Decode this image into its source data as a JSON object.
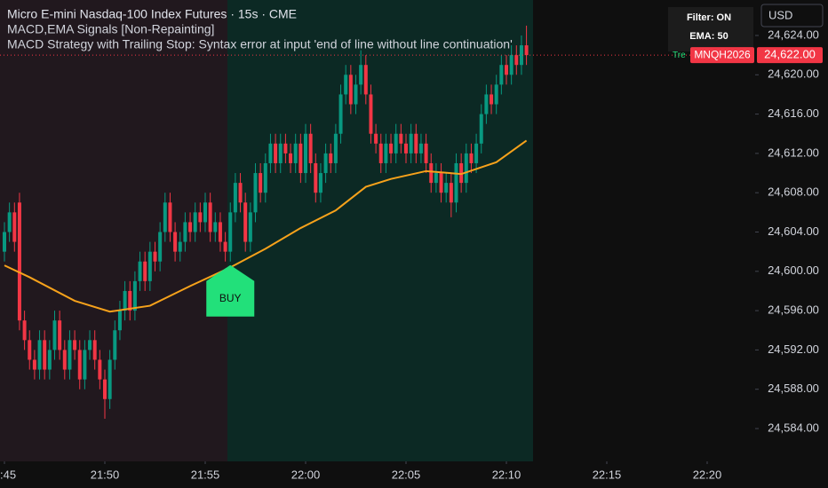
{
  "chart_data": {
    "type": "candlestick",
    "title": "Micro E-mini Nasdaq-100 Index Futures · 15s · CME",
    "indicator_1": "MACD,EMA Signals [Non-Repainting]",
    "indicator_2": "MACD Strategy with Trailing Stop: Syntax error at input 'end of line without line continuation'",
    "status_filter": "Filter: ON",
    "status_ema": "EMA: 50",
    "currency": "USD",
    "symbol": "MNQH2026",
    "partial_label": "Tre",
    "up_color": "#089981",
    "down_color": "#f23645",
    "ylim": [
      24580.66,
      24627.61
    ],
    "xlim": [
      -0.885,
      149.56
    ],
    "yticks": [
      {
        "value": 24584,
        "label": "24,584.00"
      },
      {
        "value": 24588,
        "label": "24,588.00"
      },
      {
        "value": 24592,
        "label": "24,592.00"
      },
      {
        "value": 24596,
        "label": "24,596.00"
      },
      {
        "value": 24600,
        "label": "24,600.00"
      },
      {
        "value": 24604,
        "label": "24,604.00"
      },
      {
        "value": 24608,
        "label": "24,608.00"
      },
      {
        "value": 24612,
        "label": "24,612.00"
      },
      {
        "value": 24616,
        "label": "24,616.00"
      },
      {
        "value": 24620,
        "label": "24,620.00"
      },
      {
        "value": 24624,
        "label": "24,624.00"
      }
    ],
    "xticks": [
      {
        "value": 0,
        "label": ":45"
      },
      {
        "value": 20,
        "label": "21:50"
      },
      {
        "value": 40,
        "label": "21:55"
      },
      {
        "value": 60,
        "label": "22:00"
      },
      {
        "value": 80,
        "label": "22:05"
      },
      {
        "value": 100,
        "label": "22:10"
      },
      {
        "value": 120,
        "label": "22:15"
      },
      {
        "value": 140,
        "label": "22:20"
      }
    ],
    "last_price": {
      "value": 24622,
      "label": "24,622.00"
    },
    "open": [
      24602,
      24604,
      24606,
      24607,
      24595,
      24593,
      24591,
      24590,
      24593,
      24590,
      24592,
      24595,
      24592,
      24590,
      24593,
      24592,
      24589,
      24592,
      24593,
      24591,
      24589,
      24587,
      24591,
      24594,
      24596,
      24598,
      24596,
      24599,
      24601,
      24599,
      24602,
      24601,
      24604,
      24607,
      24604,
      24602,
      24603,
      24605,
      24604,
      24606,
      24605,
      24607,
      24604,
      24605,
      24603,
      24602,
      24606,
      24609,
      24607,
      24603,
      24606,
      24610,
      24608,
      24611,
      24613,
      24611,
      24613,
      24612,
      24611,
      24613,
      24610,
      24614,
      24611,
      24608,
      24610,
      24612,
      24611,
      24614,
      24618,
      24620,
      24617,
      24619,
      24621,
      24618,
      24614,
      24613,
      24611,
      24613,
      24612,
      24614,
      24613,
      24612,
      24614,
      24612,
      24613,
      24611,
      24609,
      24610,
      24608,
      24609,
      24607,
      24611,
      24609,
      24612,
      24611,
      24613,
      24616,
      24618,
      24617,
      24619,
      24621,
      24620,
      24622,
      24621,
      24623
    ],
    "high": [
      24605,
      24607,
      24607,
      24608,
      24596,
      24594,
      24592,
      24594,
      24594,
      24593,
      24596,
      24596,
      24593,
      24594,
      24594,
      24593,
      24593,
      24594,
      24594,
      24592,
      24590,
      24592,
      24595,
      24597,
      24599,
      24599,
      24600,
      24602,
      24602,
      24603,
      24603,
      24605,
      24608,
      24608,
      24605,
      24604,
      24606,
      24606,
      24607,
      24607,
      24608,
      24608,
      24606,
      24606,
      24604,
      24607,
      24610,
      24610,
      24608,
      24607,
      24611,
      24611,
      24612,
      24614,
      24614,
      24614,
      24614,
      24613,
      24614,
      24614,
      24615,
      24615,
      24612,
      24611,
      24613,
      24613,
      24615,
      24619,
      24621,
      24621,
      24620,
      24622.5,
      24622,
      24619,
      24615,
      24614,
      24614,
      24614,
      24615,
      24615,
      24614,
      24615,
      24615,
      24614,
      24614,
      24612,
      24611,
      24611,
      24610,
      24610,
      24612,
      24612,
      24613,
      24613,
      24614,
      24617,
      24619,
      24619,
      24620,
      24622,
      24622,
      24623,
      24623,
      24624,
      24625
    ],
    "low": [
      24601,
      24603,
      24602,
      24594,
      24592,
      24590,
      24589,
      24589,
      24589,
      24589,
      24591,
      24591,
      24589,
      24589,
      24591,
      24588,
      24588,
      24591,
      24590,
      24588,
      24585,
      24586,
      24590,
      24593,
      24595,
      24595,
      24595,
      24598,
      24598,
      24598,
      24600,
      24600,
      24603,
      24603,
      24601,
      24601,
      24602,
      24603,
      24603,
      24604,
      24604,
      24603,
      24603,
      24602,
      24601,
      24601,
      24605,
      24606,
      24602,
      24602,
      24605,
      24607,
      24607,
      24610,
      24610,
      24610,
      24611,
      24610,
      24610,
      24609,
      24609,
      24610,
      24607,
      24607,
      24609,
      24610,
      24610,
      24613,
      24617,
      24616,
      24616,
      24618,
      24617,
      24613,
      24612,
      24610,
      24610,
      24611,
      24611,
      24612,
      24611,
      24611,
      24611,
      24611,
      24610,
      24608,
      24608,
      24607,
      24607,
      24605.5,
      24606,
      24608,
      24608,
      24610,
      24610,
      24612,
      24615,
      24616,
      24616,
      24618,
      24619,
      24619,
      24620,
      24620,
      24621
    ],
    "close": [
      24604,
      24606,
      24603,
      24595,
      24593,
      24591,
      24590,
      24593,
      24590,
      24592,
      24595,
      24592,
      24590,
      24593,
      24592,
      24589,
      24592,
      24593,
      24591,
      24589,
      24587,
      24591,
      24594,
      24596,
      24598,
      24596,
      24599,
      24601,
      24599,
      24602,
      24601,
      24604,
      24607,
      24604,
      24602,
      24603,
      24605,
      24604,
      24606,
      24605,
      24607,
      24604,
      24605,
      24603,
      24602,
      24606,
      24609,
      24607,
      24603,
      24606,
      24610,
      24608,
      24611,
      24613,
      24611,
      24613,
      24612,
      24611,
      24613,
      24610,
      24614,
      24611,
      24608,
      24610,
      24612,
      24611,
      24614,
      24618,
      24620,
      24617,
      24619,
      24621,
      24618,
      24614,
      24613,
      24611,
      24613,
      24612,
      24614,
      24613,
      24612,
      24614,
      24612,
      24613,
      24611,
      24609,
      24610,
      24608,
      24609,
      24607,
      24611,
      24609,
      24612,
      24611,
      24613,
      24616,
      24618,
      24617,
      24619,
      24621,
      24620,
      24622,
      24621,
      24623,
      24622
    ],
    "ema": {
      "color": "#f7a21b",
      "x": [
        0,
        5,
        14,
        21,
        29,
        37,
        45,
        52,
        59,
        66,
        72,
        77,
        84,
        91,
        98,
        104
      ],
      "values": [
        24600.6,
        24599.4,
        24597,
        24595.9,
        24596.5,
        24598.5,
        24600.4,
        24602.3,
        24604.4,
        24606.2,
        24608.6,
        24609.4,
        24610.2,
        24609.9,
        24611.1,
        24613.3
      ]
    },
    "signal": {
      "label": "BUY",
      "x": 45,
      "color": "#22e07a"
    }
  }
}
